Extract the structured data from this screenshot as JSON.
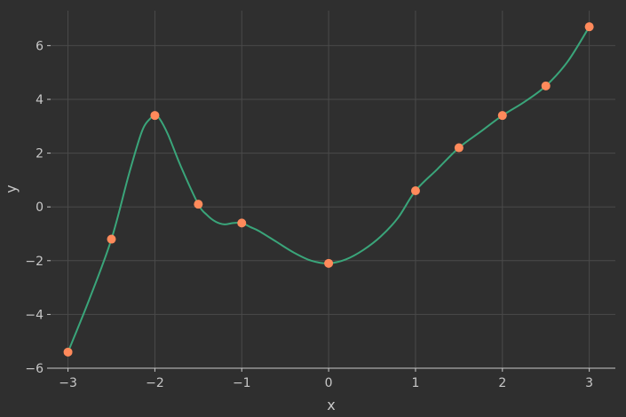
{
  "chart_data": {
    "type": "line",
    "xlabel": "x",
    "ylabel": "y",
    "xlim": [
      -3.2,
      3.3
    ],
    "ylim": [
      -6,
      7.3
    ],
    "grid": true,
    "xticks": [
      -3,
      -2,
      -1,
      0,
      1,
      2,
      3
    ],
    "yticks": [
      -6,
      -4,
      -2,
      0,
      2,
      4,
      6
    ],
    "xtick_labels": [
      "−3",
      "−2",
      "−1",
      "0",
      "1",
      "2",
      "3"
    ],
    "ytick_labels": [
      "−6",
      "−4",
      "−2",
      "0",
      "2",
      "4",
      "6"
    ],
    "colors": {
      "background": "#2f2f2f",
      "line": "#3aa57a",
      "marker": "#ff8a5b",
      "grid": "#4a4a4a",
      "text": "#c8c8c8"
    },
    "markers": {
      "x": [
        -3,
        -2.5,
        -2,
        -1.5,
        -1,
        0,
        1,
        1.5,
        2,
        2.5,
        3
      ],
      "y": [
        -5.4,
        -1.2,
        3.4,
        0.1,
        -0.6,
        -2.1,
        0.6,
        2.2,
        3.4,
        4.5,
        6.7
      ]
    },
    "curve": {
      "x": [
        -3,
        -2.75,
        -2.5,
        -2.3,
        -2.15,
        -2.05,
        -2,
        -1.95,
        -1.85,
        -1.7,
        -1.5,
        -1.4,
        -1.3,
        -1.2,
        -1.1,
        -1,
        -0.9,
        -0.8,
        -0.6,
        -0.4,
        -0.2,
        0,
        0.2,
        0.4,
        0.6,
        0.8,
        1,
        1.25,
        1.5,
        1.75,
        2,
        2.25,
        2.5,
        2.75,
        3
      ],
      "y": [
        -5.4,
        -3.4,
        -1.2,
        1.2,
        2.8,
        3.3,
        3.4,
        3.3,
        2.7,
        1.5,
        0.1,
        -0.3,
        -0.55,
        -0.65,
        -0.6,
        -0.6,
        -0.75,
        -0.9,
        -1.3,
        -1.7,
        -2.0,
        -2.1,
        -1.95,
        -1.6,
        -1.1,
        -0.4,
        0.6,
        1.4,
        2.2,
        2.8,
        3.4,
        3.9,
        4.5,
        5.4,
        6.7
      ]
    }
  }
}
